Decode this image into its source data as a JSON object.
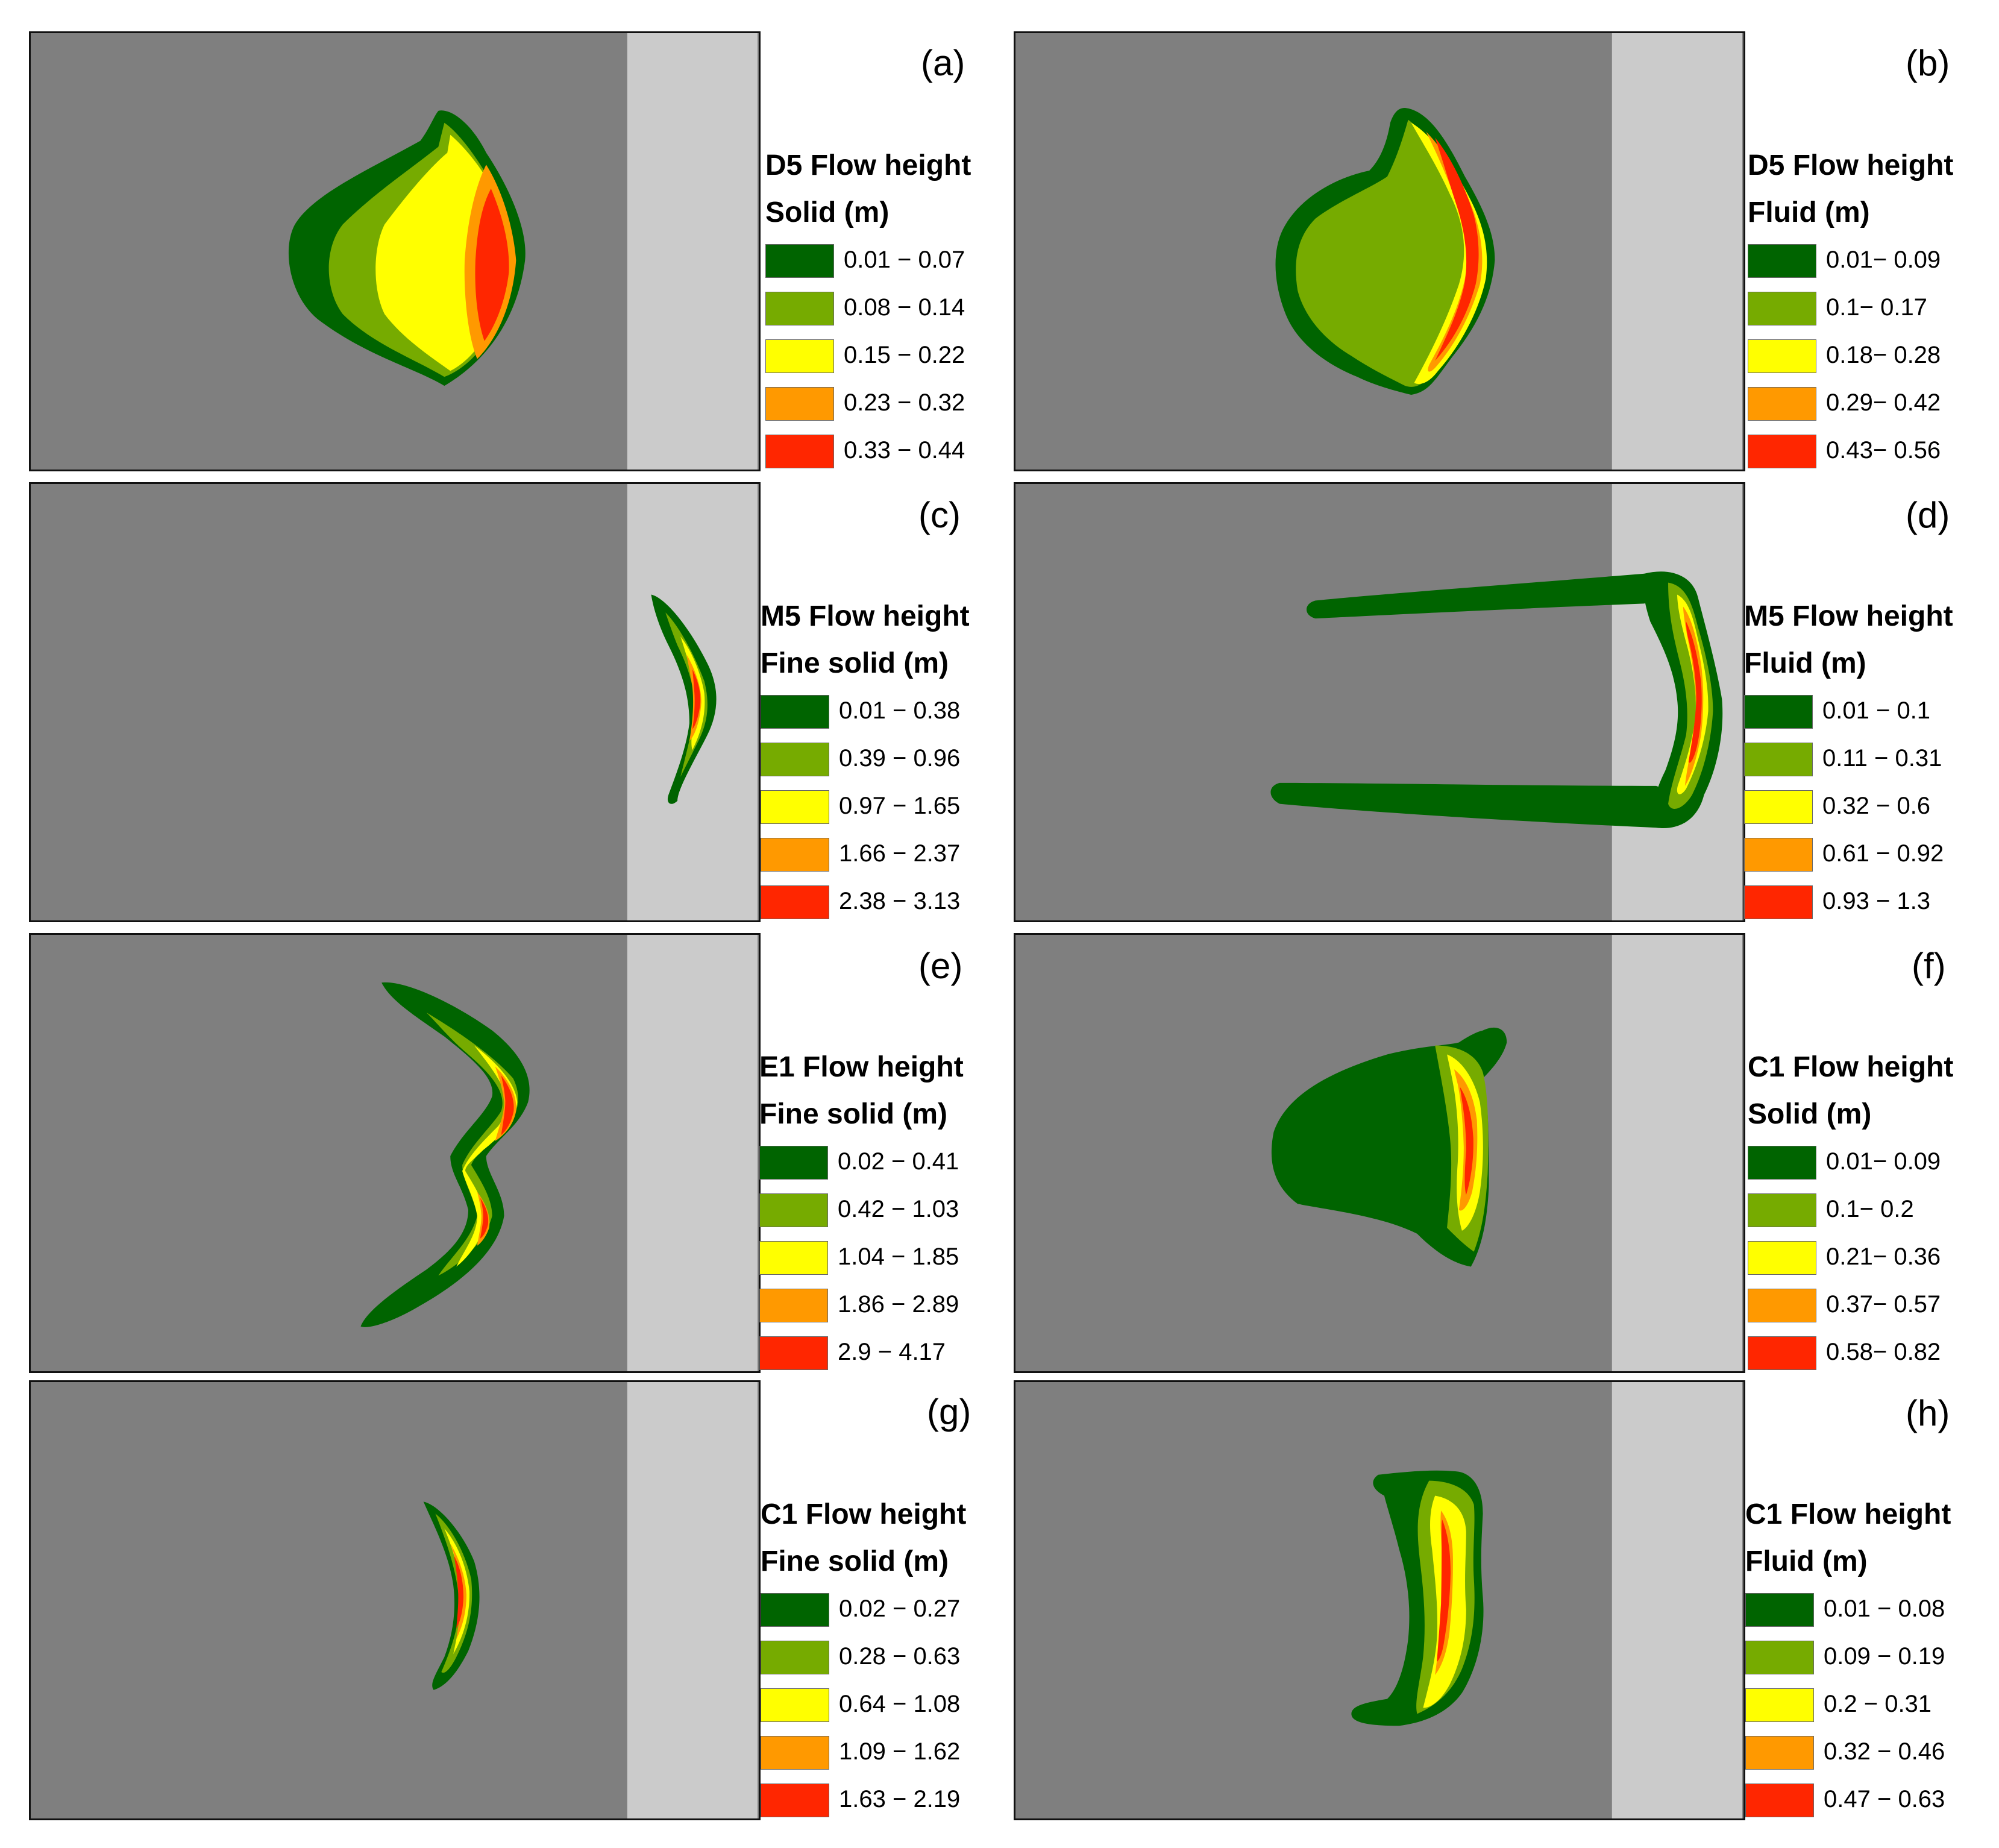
{
  "colors": {
    "background": "#7f7f7f",
    "strip": "#cbcbcb",
    "classes": [
      "#006400",
      "#76ab00",
      "#ffff00",
      "#ff9900",
      "#ff2600"
    ]
  },
  "panels": [
    {
      "label": "(a)",
      "legend_line1": "D5 Flow height",
      "legend_line2": "Solid (m)",
      "ranges": [
        "0.01 − 0.07",
        "0.08 − 0.14",
        "0.15 − 0.22",
        "0.23 − 0.32",
        "0.33 − 0.44"
      ]
    },
    {
      "label": "(b)",
      "legend_line1": "D5 Flow height",
      "legend_line2": "Fluid (m)",
      "ranges": [
        "0.01− 0.09",
        "0.1− 0.17",
        "0.18− 0.28",
        "0.29− 0.42",
        "0.43− 0.56"
      ]
    },
    {
      "label": "(c)",
      "legend_line1": "M5 Flow height",
      "legend_line2": "Fine solid (m)",
      "ranges": [
        "0.01 − 0.38",
        "0.39 − 0.96",
        "0.97 − 1.65",
        "1.66 − 2.37",
        "2.38 − 3.13"
      ]
    },
    {
      "label": "(d)",
      "legend_line1": "M5 Flow height",
      "legend_line2": "Fluid (m)",
      "ranges": [
        "0.01 − 0.1",
        "0.11 − 0.31",
        "0.32 − 0.6",
        "0.61 − 0.92",
        "0.93 − 1.3"
      ]
    },
    {
      "label": "(e)",
      "legend_line1": "E1 Flow height",
      "legend_line2": "Fine solid (m)",
      "ranges": [
        "0.02 − 0.41",
        "0.42 − 1.03",
        "1.04 − 1.85",
        "1.86 − 2.89",
        "2.9 − 4.17"
      ]
    },
    {
      "label": "(f)",
      "legend_line1": "C1 Flow height",
      "legend_line2": "Solid (m)",
      "ranges": [
        "0.01− 0.09",
        "0.1− 0.2",
        "0.21− 0.36",
        "0.37− 0.57",
        "0.58− 0.82"
      ]
    },
    {
      "label": "(g)",
      "legend_line1": "C1 Flow height",
      "legend_line2": "Fine solid (m)",
      "ranges": [
        "0.02 − 0.27",
        "0.28 − 0.63",
        "0.64 − 1.08",
        "1.09 − 1.62",
        "1.63 − 2.19"
      ]
    },
    {
      "label": "(h)",
      "legend_line1": "C1 Flow height",
      "legend_line2": "Fluid (m)",
      "ranges": [
        "0.01 − 0.08",
        "0.09 − 0.19",
        "0.2 − 0.31",
        "0.32 − 0.46",
        "0.47 − 0.63"
      ]
    }
  ]
}
